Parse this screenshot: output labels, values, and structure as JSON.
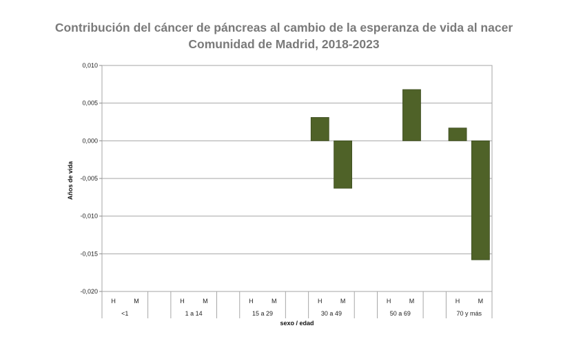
{
  "chart_data": {
    "type": "bar",
    "title": "Contribución del cáncer de páncreas al cambio de la esperanza de vida al nacer",
    "subtitle": "Comunidad de Madrid, 2018-2023",
    "xlabel": "sexo / edad",
    "ylabel": "Años de vida",
    "ylim": [
      -0.02,
      0.01
    ],
    "yticks": [
      "0,010",
      "0,005",
      "0,000",
      "-0,005",
      "-0,010",
      "-0,015",
      "-0,020"
    ],
    "ytick_values": [
      0.01,
      0.005,
      0,
      -0.005,
      -0.01,
      -0.015,
      -0.02
    ],
    "grid": true,
    "bar_color": "#4f6228",
    "groups": [
      "<1",
      "1 a 14",
      "15 a 29",
      "30 a 49",
      "50 a 69",
      "70 y más"
    ],
    "sexes": [
      "H",
      "M"
    ],
    "series": [
      {
        "name": "H",
        "values": [
          0,
          0,
          0,
          0.0031,
          0,
          0.0017
        ]
      },
      {
        "name": "M",
        "values": [
          0,
          0,
          0,
          -0.0063,
          0.0068,
          -0.0158
        ]
      }
    ]
  }
}
